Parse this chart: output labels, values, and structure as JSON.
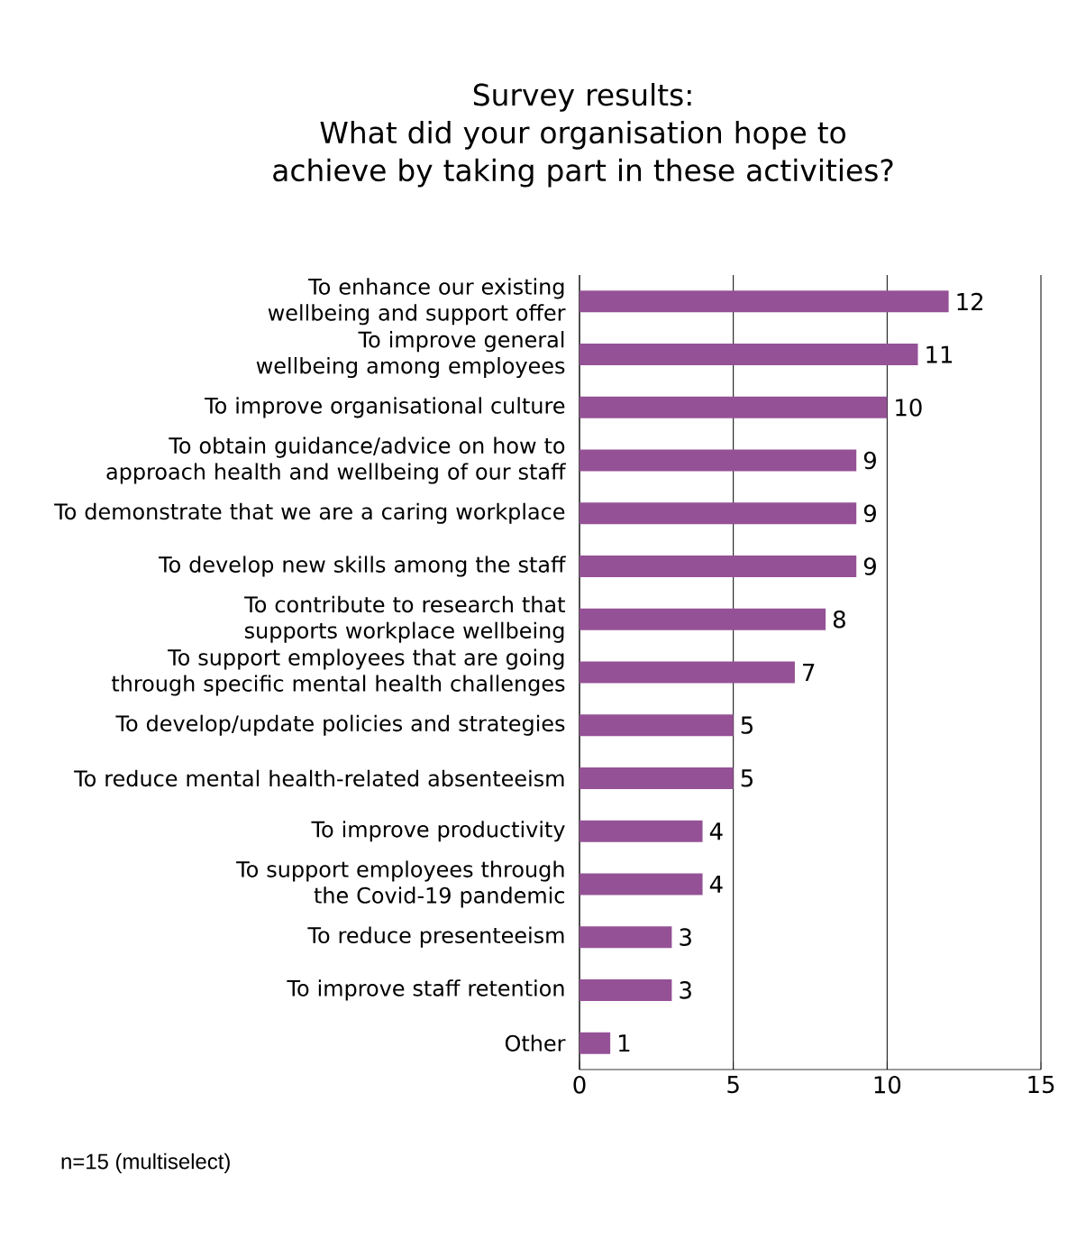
{
  "chart_data": {
    "type": "bar",
    "orientation": "horizontal",
    "title": "Survey results:\nWhat did your organisation hope to achieve by taking part in these activities?",
    "categories": [
      "To enhance our existing wellbeing and support offer",
      "To improve general wellbeing among employees",
      "To improve organisational culture",
      "To obtain guidance/advice on how to approach health and wellbeing of our staff",
      "To demonstrate that we are a caring workplace",
      "To develop new skills among the staff",
      "To contribute to research that supports workplace wellbeing",
      "To support employees that are going through specific mental health challenges",
      "To develop/update policies and strategies",
      "To reduce mental health-related absenteeism",
      "To improve productivity",
      "To support employees through the Covid-19 pandemic",
      "To reduce presenteeism",
      "To improve staff retention",
      "Other"
    ],
    "values": [
      12,
      11,
      10,
      9,
      9,
      9,
      8,
      7,
      5,
      5,
      4,
      4,
      3,
      3,
      1
    ],
    "color": "#955196",
    "xlim": [
      0,
      15
    ],
    "xticks": [
      0,
      5,
      10,
      15
    ],
    "grid": "x",
    "data_labels": true,
    "annotations": [
      "n=15 (multiselect)"
    ]
  }
}
